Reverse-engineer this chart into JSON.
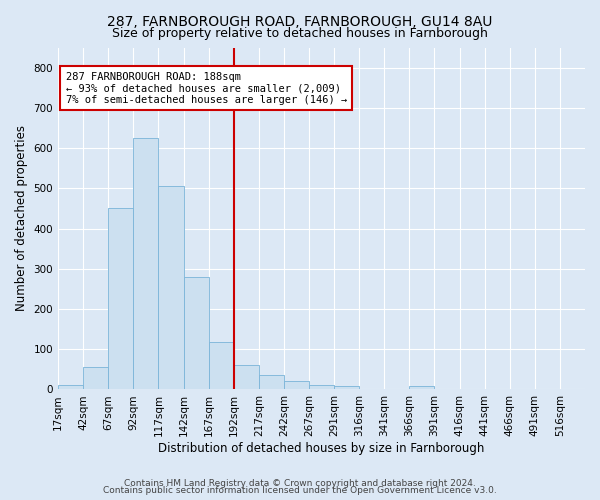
{
  "title1": "287, FARNBOROUGH ROAD, FARNBOROUGH, GU14 8AU",
  "title2": "Size of property relative to detached houses in Farnborough",
  "xlabel": "Distribution of detached houses by size in Farnborough",
  "ylabel": "Number of detached properties",
  "bar_values": [
    12,
    55,
    450,
    625,
    505,
    280,
    118,
    60,
    37,
    22,
    10,
    8,
    0,
    0,
    8,
    0,
    0,
    0,
    0,
    0,
    0
  ],
  "bar_labels": [
    "17sqm",
    "42sqm",
    "67sqm",
    "92sqm",
    "117sqm",
    "142sqm",
    "167sqm",
    "192sqm",
    "217sqm",
    "242sqm",
    "267sqm",
    "291sqm",
    "316sqm",
    "341sqm",
    "366sqm",
    "391sqm",
    "416sqm",
    "441sqm",
    "466sqm",
    "491sqm",
    "516sqm"
  ],
  "bar_color": "#cce0f0",
  "bar_edge_color": "#7ab4d8",
  "vline_index": 7,
  "vline_color": "#cc0000",
  "annotation_text": "287 FARNBOROUGH ROAD: 188sqm\n← 93% of detached houses are smaller (2,009)\n7% of semi-detached houses are larger (146) →",
  "annotation_box_color": "#ffffff",
  "annotation_border_color": "#cc0000",
  "background_color": "#dce8f5",
  "grid_color": "#ffffff",
  "ylim": [
    0,
    850
  ],
  "yticks": [
    0,
    100,
    200,
    300,
    400,
    500,
    600,
    700,
    800
  ],
  "footer1": "Contains HM Land Registry data © Crown copyright and database right 2024.",
  "footer2": "Contains public sector information licensed under the Open Government Licence v3.0.",
  "title1_fontsize": 10,
  "title2_fontsize": 9,
  "xlabel_fontsize": 8.5,
  "ylabel_fontsize": 8.5,
  "tick_fontsize": 7.5,
  "annotation_fontsize": 7.5,
  "footer_fontsize": 6.5
}
